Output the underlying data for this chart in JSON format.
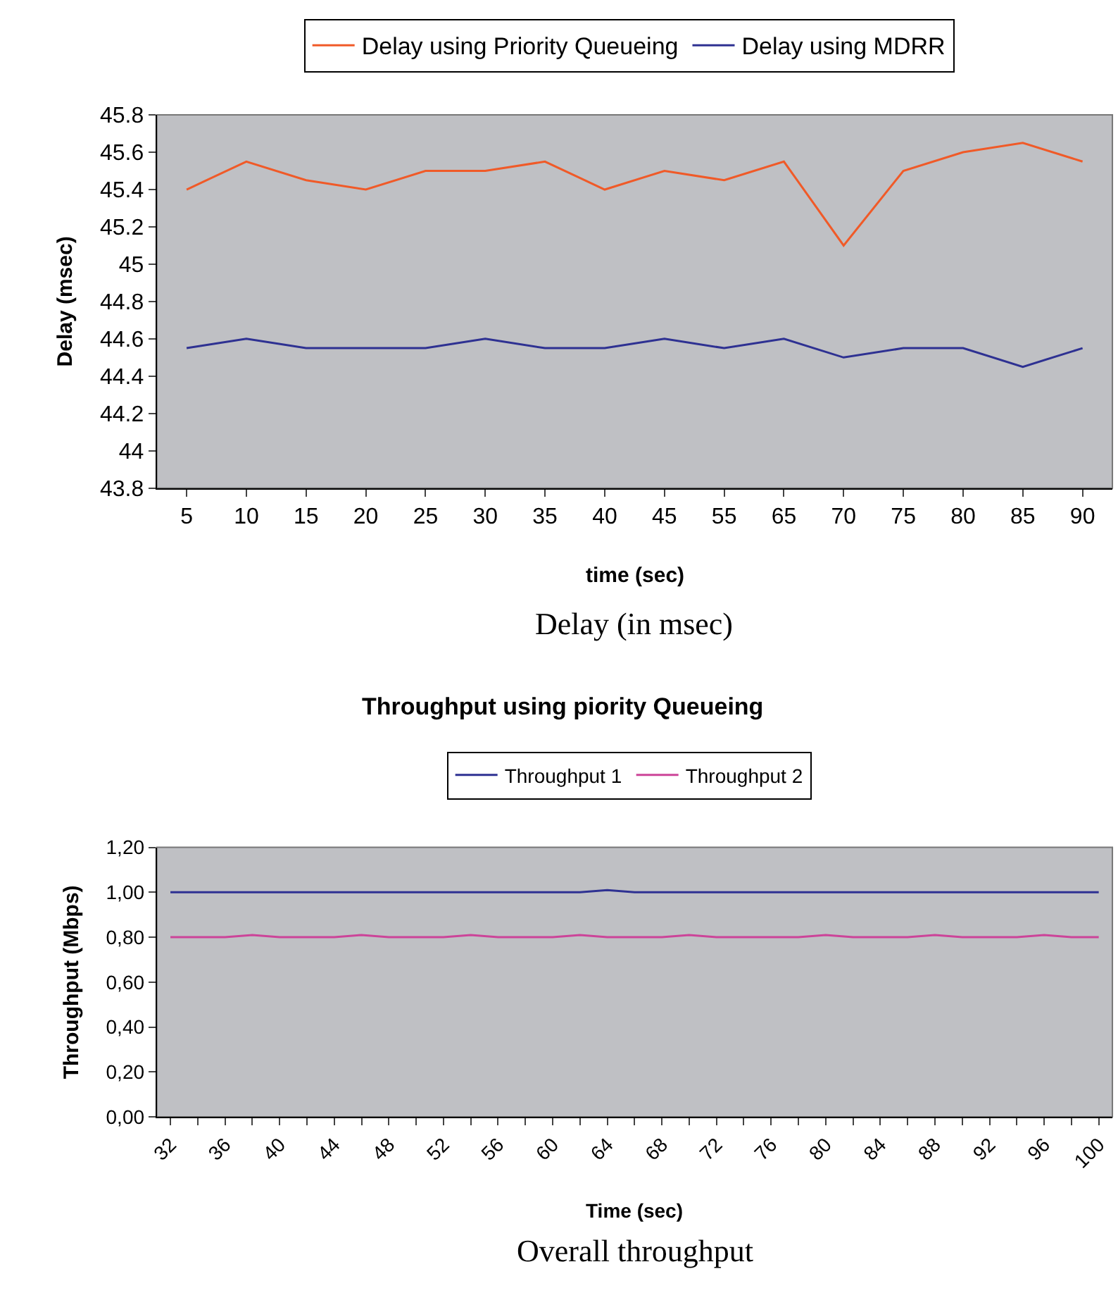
{
  "chart_data": [
    {
      "type": "line",
      "xlabel": "time (sec)",
      "ylabel": "Delay (msec)",
      "categories": [
        "5",
        "10",
        "15",
        "20",
        "25",
        "30",
        "35",
        "40",
        "45",
        "55",
        "65",
        "70",
        "75",
        "80",
        "85",
        "90"
      ],
      "series": [
        {
          "name": "Delay using Priority Queueing",
          "color": "#f05a28",
          "values": [
            45.4,
            45.55,
            45.45,
            45.4,
            45.5,
            45.5,
            45.55,
            45.4,
            45.5,
            45.45,
            45.55,
            45.1,
            45.5,
            45.6,
            45.65,
            45.55
          ]
        },
        {
          "name": "Delay using MDRR",
          "color": "#2e3192",
          "values": [
            44.55,
            44.6,
            44.55,
            44.55,
            44.55,
            44.6,
            44.55,
            44.55,
            44.6,
            44.55,
            44.6,
            44.5,
            44.55,
            44.55,
            44.45,
            44.55
          ]
        }
      ],
      "ylim": [
        43.8,
        45.8
      ],
      "yticks": [
        43.8,
        44,
        44.2,
        44.4,
        44.6,
        44.8,
        45,
        45.2,
        45.4,
        45.6,
        45.8
      ],
      "grid": false,
      "legend": "top",
      "marker": "none",
      "line_style": "solid",
      "annotations": [
        "Delay (in msec)"
      ]
    },
    {
      "type": "line",
      "title": "Throughput using piority Queueing",
      "xlabel": "Time (sec)",
      "ylabel": "Throughput (Mbps)",
      "categories": [
        "32",
        null,
        "36",
        null,
        "40",
        null,
        "44",
        null,
        "48",
        null,
        "52",
        null,
        "56",
        null,
        "60",
        null,
        "64",
        null,
        "68",
        null,
        "72",
        null,
        "76",
        null,
        "80",
        null,
        "84",
        null,
        "88",
        null,
        "92",
        null,
        "96",
        null,
        "100"
      ],
      "series": [
        {
          "name": "Throughput 1",
          "color": "#2e3192",
          "values": [
            1,
            1,
            1,
            1,
            1,
            1,
            1,
            1,
            1,
            1,
            1,
            1,
            1,
            1,
            1,
            1,
            1.01,
            1,
            1,
            1,
            1,
            1,
            1,
            1,
            1,
            1,
            1,
            1,
            1,
            1,
            1,
            1,
            1,
            1,
            1
          ]
        },
        {
          "name": "Throughput 2",
          "color": "#cc4499",
          "values": [
            0.8,
            0.8,
            0.8,
            0.81,
            0.8,
            0.8,
            0.8,
            0.81,
            0.8,
            0.8,
            0.8,
            0.81,
            0.8,
            0.8,
            0.8,
            0.81,
            0.8,
            0.8,
            0.8,
            0.81,
            0.8,
            0.8,
            0.8,
            0.8,
            0.81,
            0.8,
            0.8,
            0.8,
            0.81,
            0.8,
            0.8,
            0.8,
            0.81,
            0.8,
            0.8
          ]
        }
      ],
      "ylim": [
        0,
        1.2
      ],
      "yticks": [
        {
          "value": 0,
          "label": "0,00"
        },
        {
          "value": 0.2,
          "label": "0,20"
        },
        {
          "value": 0.4,
          "label": "0,40"
        },
        {
          "value": 0.6,
          "label": "0,60"
        },
        {
          "value": 0.8,
          "label": "0,80"
        },
        {
          "value": 1.0,
          "label": "1,00"
        },
        {
          "value": 1.2,
          "label": "1,20"
        }
      ],
      "grid": false,
      "legend": "top",
      "marker": "none",
      "line_style": "solid",
      "annotations": [
        "Overall throughput"
      ]
    }
  ]
}
